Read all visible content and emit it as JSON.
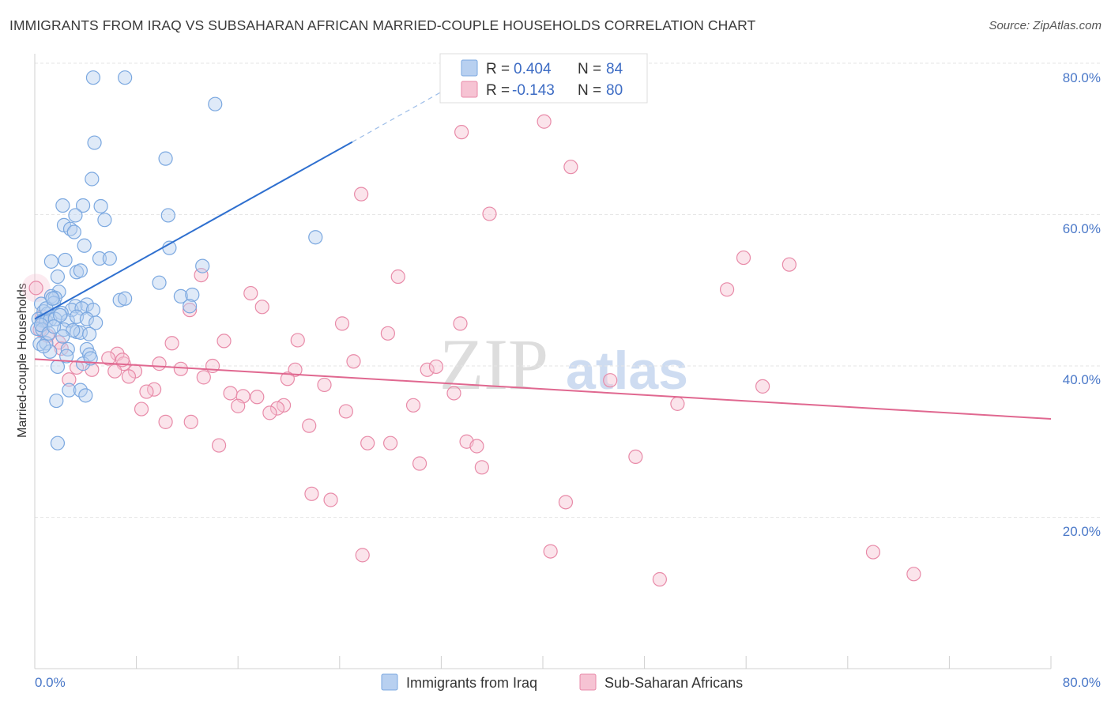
{
  "header": {
    "title": "IMMIGRANTS FROM IRAQ VS SUBSAHARAN AFRICAN MARRIED-COUPLE HOUSEHOLDS CORRELATION CHART",
    "source": "Source: ZipAtlas.com"
  },
  "watermark": {
    "part1": "ZIP",
    "part2": "atlas"
  },
  "colors": {
    "blue": "#7ba8e0",
    "blue_fill": "#b8d0f0",
    "blue_line": "#2e6fcf",
    "pink": "#e88aa8",
    "pink_fill": "#f6c3d3",
    "pink_line": "#e06890",
    "grid": "#e6e6e6",
    "tick_label": "#4a78c8"
  },
  "legend": {
    "blue_r_label": "R =",
    "blue_r": "0.404",
    "blue_n_label": "N =",
    "blue_n": "84",
    "pink_r_label": "R =",
    "pink_r": "-0.143",
    "pink_n_label": "N =",
    "pink_n": "80"
  },
  "bottom_legend": {
    "blue_label": "Immigrants from Iraq",
    "pink_label": "Sub-Saharan Africans"
  },
  "chart_data": {
    "type": "scatter",
    "title": "IMMIGRANTS FROM IRAQ VS SUBSAHARAN AFRICAN MARRIED-COUPLE HOUSEHOLDS CORRELATION CHART",
    "xlabel": "",
    "ylabel": "Married-couple Households",
    "xlim": [
      0,
      80
    ],
    "ylim": [
      0,
      80
    ],
    "x_tick_labels": {
      "0": "0.0%",
      "80": "80.0%"
    },
    "y_ticks": [
      20,
      40,
      60,
      80
    ],
    "y_tick_labels": [
      "20.0%",
      "40.0%",
      "60.0%",
      "80.0%"
    ],
    "legend_position": "top-center",
    "grid": true,
    "series": [
      {
        "name": "Immigrants from Iraq",
        "color": "blue",
        "r": 0.404,
        "n": 84,
        "trend": {
          "x0": 0,
          "y0": 46.2,
          "x1": 25,
          "y1": 69.6,
          "dash_to_x": 32,
          "dash_to_y": 76.2
        },
        "points": [
          [
            4.6,
            78.1
          ],
          [
            7.1,
            78.1
          ],
          [
            14.2,
            74.6
          ],
          [
            4.7,
            69.5
          ],
          [
            10.3,
            67.4
          ],
          [
            4.5,
            64.7
          ],
          [
            2.2,
            61.2
          ],
          [
            3.8,
            61.2
          ],
          [
            5.2,
            61.1
          ],
          [
            3.2,
            59.9
          ],
          [
            10.5,
            59.9
          ],
          [
            5.5,
            59.3
          ],
          [
            2.3,
            58.6
          ],
          [
            2.8,
            58.1
          ],
          [
            3.1,
            57.7
          ],
          [
            22.1,
            57.0
          ],
          [
            3.9,
            55.9
          ],
          [
            10.6,
            55.6
          ],
          [
            1.3,
            53.8
          ],
          [
            2.4,
            54.0
          ],
          [
            5.1,
            54.2
          ],
          [
            5.9,
            54.2
          ],
          [
            13.2,
            53.2
          ],
          [
            3.3,
            52.4
          ],
          [
            3.6,
            52.6
          ],
          [
            1.8,
            51.8
          ],
          [
            9.8,
            51.0
          ],
          [
            1.9,
            49.8
          ],
          [
            1.3,
            49.2
          ],
          [
            1.6,
            49.0
          ],
          [
            11.5,
            49.2
          ],
          [
            12.4,
            49.4
          ],
          [
            6.7,
            48.7
          ],
          [
            7.1,
            48.9
          ],
          [
            0.5,
            48.2
          ],
          [
            1.5,
            48.3
          ],
          [
            4.1,
            48.1
          ],
          [
            3.2,
            47.9
          ],
          [
            12.2,
            47.9
          ],
          [
            2.9,
            47.4
          ],
          [
            3.7,
            47.6
          ],
          [
            4.6,
            47.4
          ],
          [
            0.7,
            47.2
          ],
          [
            1.0,
            46.9
          ],
          [
            2.1,
            47.0
          ],
          [
            0.3,
            46.2
          ],
          [
            0.6,
            46.0
          ],
          [
            0.9,
            45.9
          ],
          [
            1.2,
            46.1
          ],
          [
            1.6,
            46.2
          ],
          [
            2.6,
            46.0
          ],
          [
            3.3,
            46.5
          ],
          [
            4.1,
            46.2
          ],
          [
            4.8,
            45.7
          ],
          [
            0.2,
            44.9
          ],
          [
            0.6,
            44.8
          ],
          [
            2.3,
            44.8
          ],
          [
            3.3,
            44.5
          ],
          [
            3.6,
            44.4
          ],
          [
            4.3,
            44.2
          ],
          [
            0.4,
            42.9
          ],
          [
            0.9,
            43.0
          ],
          [
            2.6,
            42.2
          ],
          [
            4.1,
            42.2
          ],
          [
            2.5,
            41.3
          ],
          [
            4.3,
            41.5
          ],
          [
            1.2,
            41.9
          ],
          [
            1.8,
            39.9
          ],
          [
            3.8,
            40.3
          ],
          [
            2.7,
            36.8
          ],
          [
            3.6,
            36.8
          ],
          [
            4.0,
            36.1
          ],
          [
            1.7,
            35.4
          ],
          [
            1.8,
            29.8
          ],
          [
            0.5,
            45.4
          ],
          [
            0.9,
            47.6
          ],
          [
            1.4,
            48.9
          ],
          [
            2.0,
            46.7
          ],
          [
            3.0,
            44.7
          ],
          [
            1.1,
            44.3
          ],
          [
            0.7,
            42.6
          ],
          [
            2.2,
            43.9
          ],
          [
            4.4,
            41.0
          ],
          [
            1.5,
            45.2
          ]
        ]
      },
      {
        "name": "Sub-Saharan Africans",
        "color": "pink",
        "r": -0.143,
        "n": 80,
        "trend": {
          "x0": 0,
          "y0": 40.9,
          "x1": 80,
          "y1": 33.0
        },
        "points": [
          [
            40.1,
            72.3
          ],
          [
            33.6,
            70.9
          ],
          [
            42.2,
            66.3
          ],
          [
            25.7,
            62.7
          ],
          [
            35.8,
            60.1
          ],
          [
            55.8,
            54.3
          ],
          [
            59.4,
            53.4
          ],
          [
            13.1,
            52.0
          ],
          [
            28.6,
            51.8
          ],
          [
            54.5,
            50.1
          ],
          [
            17.0,
            49.6
          ],
          [
            0.1,
            50.3
          ],
          [
            17.9,
            47.8
          ],
          [
            12.2,
            47.4
          ],
          [
            33.5,
            45.6
          ],
          [
            24.2,
            45.6
          ],
          [
            27.8,
            44.3
          ],
          [
            0.4,
            44.8
          ],
          [
            1.9,
            43.1
          ],
          [
            20.7,
            43.4
          ],
          [
            14.9,
            43.3
          ],
          [
            10.8,
            43.0
          ],
          [
            6.5,
            41.6
          ],
          [
            9.8,
            40.3
          ],
          [
            7.0,
            40.3
          ],
          [
            25.1,
            40.6
          ],
          [
            14.0,
            40.0
          ],
          [
            11.5,
            39.6
          ],
          [
            3.3,
            39.8
          ],
          [
            4.5,
            39.5
          ],
          [
            30.9,
            39.5
          ],
          [
            20.5,
            39.5
          ],
          [
            31.6,
            39.9
          ],
          [
            6.3,
            39.3
          ],
          [
            7.9,
            39.3
          ],
          [
            7.4,
            38.6
          ],
          [
            13.3,
            38.5
          ],
          [
            2.7,
            38.2
          ],
          [
            19.9,
            38.3
          ],
          [
            45.3,
            38.1
          ],
          [
            57.3,
            37.3
          ],
          [
            22.8,
            37.5
          ],
          [
            9.4,
            36.9
          ],
          [
            8.8,
            36.6
          ],
          [
            15.4,
            36.4
          ],
          [
            33.0,
            36.4
          ],
          [
            16.4,
            36.0
          ],
          [
            17.5,
            35.9
          ],
          [
            16.0,
            34.7
          ],
          [
            19.6,
            34.8
          ],
          [
            29.8,
            34.8
          ],
          [
            50.6,
            35.0
          ],
          [
            19.1,
            34.4
          ],
          [
            8.4,
            34.3
          ],
          [
            24.5,
            34.0
          ],
          [
            18.5,
            33.8
          ],
          [
            10.3,
            32.6
          ],
          [
            12.3,
            32.6
          ],
          [
            21.6,
            32.1
          ],
          [
            34.0,
            30.0
          ],
          [
            26.2,
            29.8
          ],
          [
            28.0,
            29.8
          ],
          [
            34.8,
            29.4
          ],
          [
            14.5,
            29.5
          ],
          [
            47.3,
            28.0
          ],
          [
            30.3,
            27.1
          ],
          [
            35.2,
            26.6
          ],
          [
            21.8,
            23.1
          ],
          [
            23.3,
            22.3
          ],
          [
            41.8,
            22.0
          ],
          [
            40.6,
            15.5
          ],
          [
            25.8,
            15.0
          ],
          [
            66.0,
            15.4
          ],
          [
            49.2,
            11.8
          ],
          [
            69.2,
            12.5
          ],
          [
            5.8,
            41.0
          ],
          [
            2.1,
            42.3
          ],
          [
            1.0,
            44.0
          ],
          [
            0.6,
            46.5
          ],
          [
            6.9,
            40.8
          ]
        ]
      }
    ]
  }
}
